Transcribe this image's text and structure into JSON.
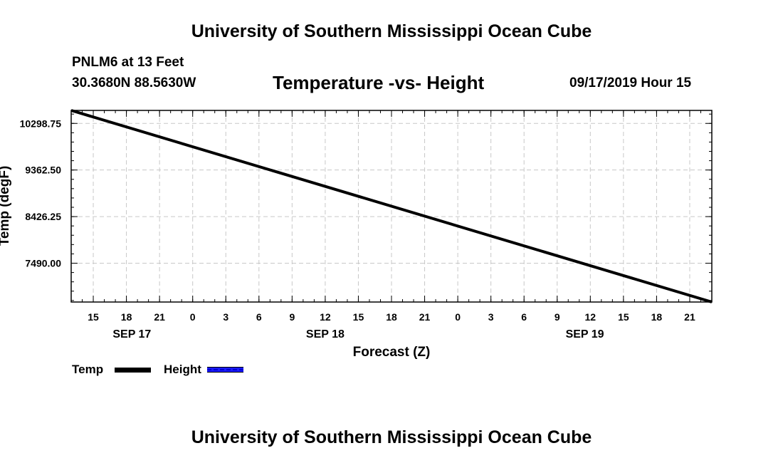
{
  "header": {
    "org_title": "University of Southern Mississippi Ocean Cube",
    "station": "PNLM6 at 13 Feet",
    "coords": "30.3680N 88.5630W",
    "datetime": "09/17/2019 Hour 15"
  },
  "footer": {
    "org_title": "University of Southern Mississippi Ocean Cube"
  },
  "legend": {
    "temp_label": "Temp",
    "height_label": "Height"
  },
  "colors": {
    "temp": "#000000",
    "height": "#1a1aff",
    "grid": "#c8c8c8"
  },
  "chart_data": {
    "type": "line",
    "title": "Temperature -vs- Height",
    "xlabel": "Forecast (Z)",
    "ylabel": "Temp (degF)",
    "x_range_hours": [
      13,
      71
    ],
    "ylim": [
      6710,
      10560
    ],
    "y_ticks": [
      7490.0,
      8426.25,
      9362.5,
      10298.75
    ],
    "y_tick_labels": [
      "7490.00",
      "8426.25",
      "9362.50",
      "10298.75"
    ],
    "x_ticks_hours": [
      15,
      18,
      21,
      24,
      27,
      30,
      33,
      36,
      39,
      42,
      45,
      48,
      51,
      54,
      57,
      60,
      63,
      66,
      69
    ],
    "x_tick_labels": [
      "15",
      "18",
      "21",
      "0",
      "3",
      "6",
      "9",
      "12",
      "15",
      "18",
      "21",
      "0",
      "3",
      "6",
      "9",
      "12",
      "15",
      "18",
      "21"
    ],
    "date_labels": [
      {
        "hour": 18.5,
        "label": "SEP 17"
      },
      {
        "hour": 36,
        "label": "SEP 18"
      },
      {
        "hour": 59.5,
        "label": "SEP 19"
      }
    ],
    "grid": true,
    "series": [
      {
        "name": "Temp",
        "x": [
          13,
          71
        ],
        "values": [
          10560,
          6710
        ]
      }
    ]
  }
}
